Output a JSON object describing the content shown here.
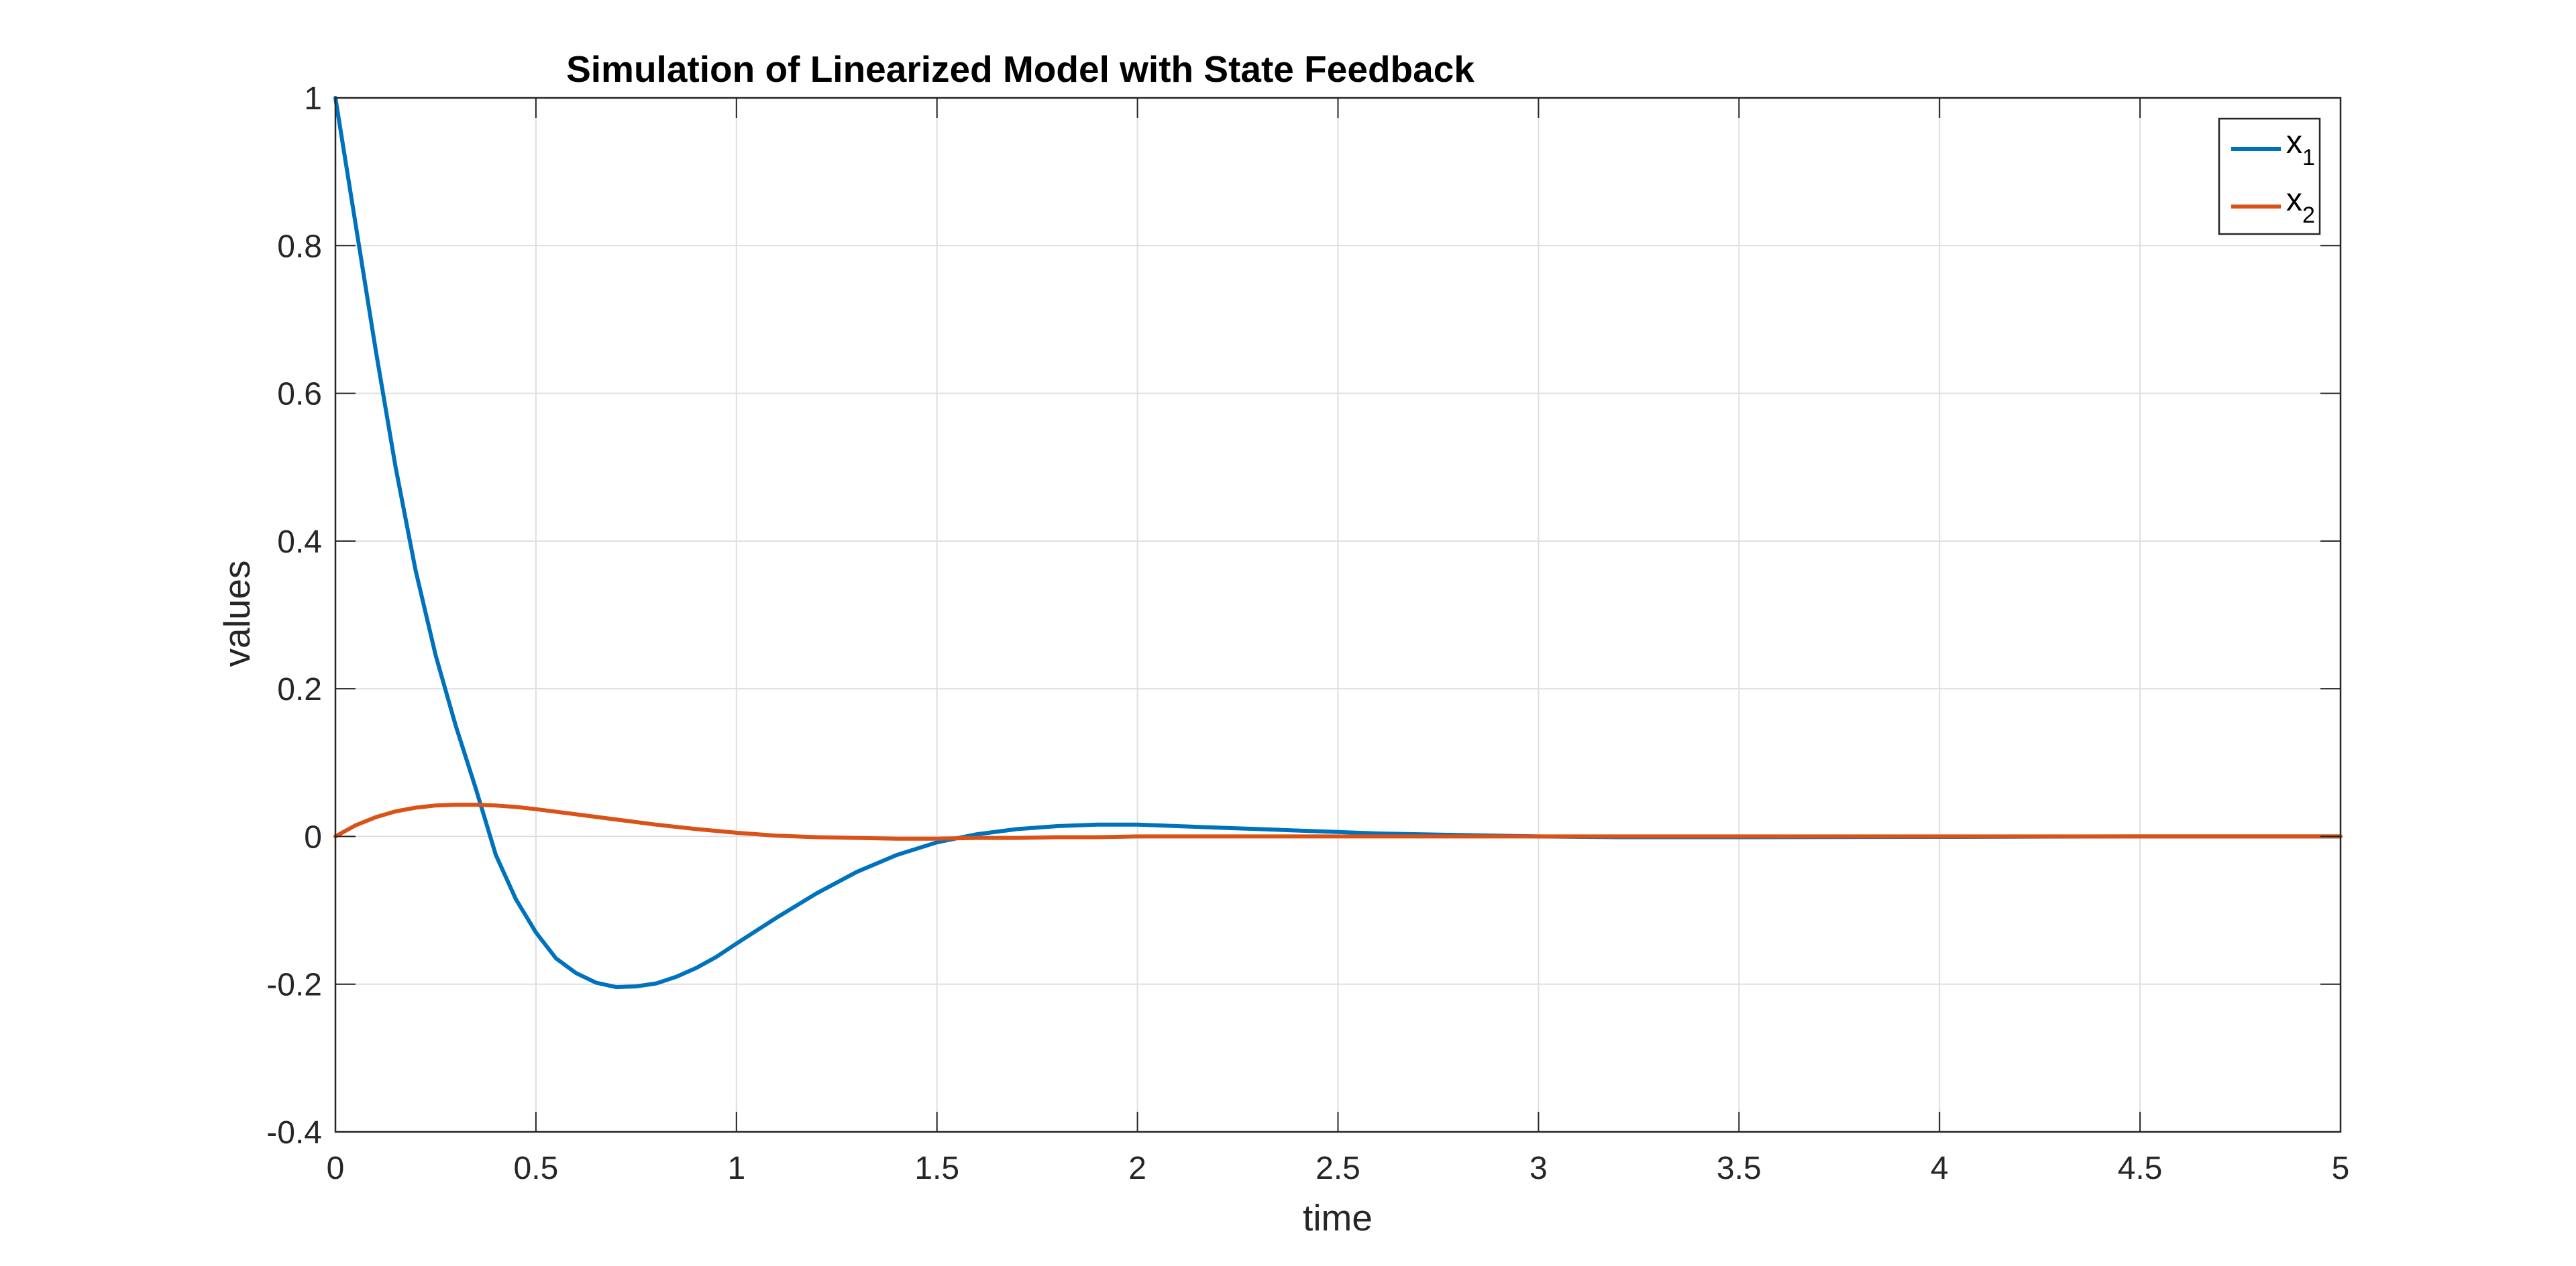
{
  "chart_data": {
    "type": "line",
    "title": "Simulation of Linearized Model with State Feedback",
    "xlabel": "time",
    "ylabel": "values",
    "xlim": [
      0,
      5
    ],
    "ylim": [
      -0.4,
      1
    ],
    "grid": true,
    "legend_position": "top-right",
    "x_ticks": [
      0,
      0.5,
      1,
      1.5,
      2,
      2.5,
      3,
      3.5,
      4,
      4.5,
      5
    ],
    "x_tick_labels": [
      "0",
      "0.5",
      "1",
      "1.5",
      "2",
      "2.5",
      "3",
      "3.5",
      "4",
      "4.5",
      "5"
    ],
    "y_ticks": [
      -0.4,
      -0.2,
      0,
      0.2,
      0.4,
      0.6,
      0.8,
      1
    ],
    "y_tick_labels": [
      "-0.4",
      "-0.2",
      "0",
      "0.2",
      "0.4",
      "0.6",
      "0.8",
      "1"
    ],
    "series": [
      {
        "name": "x",
        "name_subscript": "1",
        "color": "#0072BD",
        "x": [
          0,
          0.05,
          0.1,
          0.15,
          0.2,
          0.25,
          0.3,
          0.35,
          0.4,
          0.45,
          0.5,
          0.55,
          0.6,
          0.65,
          0.7,
          0.75,
          0.8,
          0.85,
          0.9,
          0.95,
          1.0,
          1.1,
          1.2,
          1.3,
          1.4,
          1.5,
          1.6,
          1.7,
          1.8,
          1.9,
          2.0,
          2.1,
          2.2,
          2.3,
          2.4,
          2.5,
          2.6,
          2.8,
          3.0,
          3.2,
          3.5,
          4.0,
          4.5,
          5.0
        ],
        "y": [
          1.0,
          0.83,
          0.66,
          0.5,
          0.36,
          0.245,
          0.15,
          0.065,
          -0.025,
          -0.085,
          -0.13,
          -0.165,
          -0.185,
          -0.198,
          -0.204,
          -0.203,
          -0.199,
          -0.19,
          -0.178,
          -0.163,
          -0.145,
          -0.11,
          -0.077,
          -0.048,
          -0.025,
          -0.008,
          0.003,
          0.01,
          0.014,
          0.016,
          0.016,
          0.014,
          0.012,
          0.01,
          0.008,
          0.006,
          0.004,
          0.002,
          0.0,
          -0.001,
          -0.001,
          -0.0005,
          0.0,
          0.0
        ]
      },
      {
        "name": "x",
        "name_subscript": "2",
        "color": "#D95319",
        "x": [
          0,
          0.05,
          0.1,
          0.15,
          0.2,
          0.25,
          0.3,
          0.35,
          0.4,
          0.45,
          0.5,
          0.6,
          0.7,
          0.8,
          0.9,
          1.0,
          1.1,
          1.2,
          1.3,
          1.4,
          1.5,
          1.6,
          1.7,
          1.8,
          1.9,
          2.0,
          2.2,
          2.5,
          3.0,
          3.5,
          4.0,
          5.0
        ],
        "y": [
          0.0,
          0.015,
          0.026,
          0.034,
          0.039,
          0.042,
          0.043,
          0.043,
          0.042,
          0.04,
          0.037,
          0.03,
          0.023,
          0.016,
          0.01,
          0.005,
          0.001,
          -0.001,
          -0.002,
          -0.003,
          -0.003,
          -0.002,
          -0.002,
          -0.001,
          -0.001,
          0.0,
          0.0,
          0.0,
          0.0,
          0.0,
          0.0,
          0.0
        ]
      }
    ]
  }
}
